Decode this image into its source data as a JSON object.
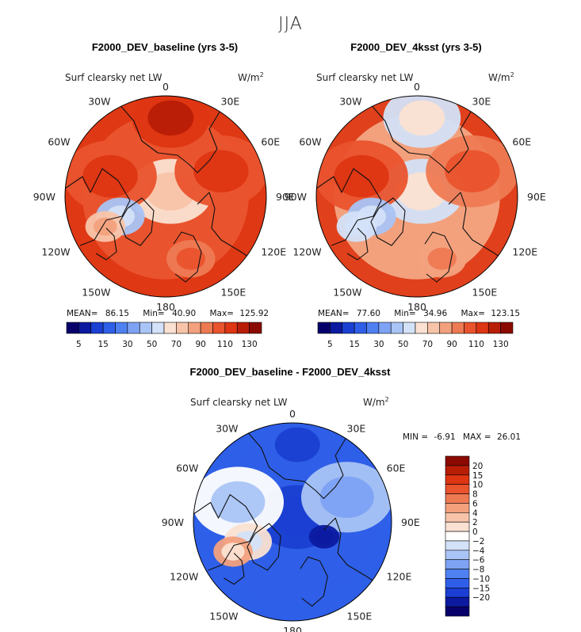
{
  "figure_title": "JJA",
  "chart_data": [
    {
      "type": "heatmap",
      "projection": "north-polar-stereographic",
      "title": "F2000_DEV_baseline (yrs 3-5)",
      "variable": "Surf clearsky net LW",
      "units": "W/m",
      "units_exponent": "2",
      "longitude_labels": [
        "180",
        "150E",
        "120E",
        "90E",
        "60E",
        "30E",
        "0",
        "30W",
        "60W",
        "90W",
        "120W",
        "150W"
      ],
      "stats": {
        "mean_label": "MEAN=",
        "mean": "86.15",
        "min_label": "Min=",
        "min": "40.90",
        "max_label": "Max=",
        "max": "125.92"
      },
      "colorbar": {
        "orientation": "horizontal",
        "levels": [
          5,
          10,
          15,
          20,
          30,
          40,
          50,
          60,
          70,
          80,
          90,
          100,
          110,
          120,
          130
        ],
        "tick_labels": [
          "5",
          "15",
          "30",
          "50",
          "70",
          "90",
          "110",
          "130"
        ],
        "colors": [
          "#08006a",
          "#0c1aa0",
          "#1a3fd2",
          "#2f5fe8",
          "#4f80f2",
          "#7ea2f4",
          "#a9c4f6",
          "#d3e2f8",
          "#fbe1d2",
          "#f8c4a9",
          "#f3a17d",
          "#ee7a53",
          "#e9532d",
          "#de3512",
          "#b81d06",
          "#8b0a00"
        ]
      },
      "field_summary": "Mostly warm shades 70-130 W/m2; reds over continents and Pacific, lighter peach over central Arctic ocean",
      "field_regions": [
        {
          "region": "central-arctic-ocean",
          "level_range": [
            60,
            80
          ]
        },
        {
          "region": "north-pacific",
          "level_range": [
            110,
            130
          ]
        },
        {
          "region": "siberia",
          "level_range": [
            100,
            130
          ]
        },
        {
          "region": "north-america",
          "level_range": [
            100,
            130
          ]
        },
        {
          "region": "greenland",
          "level_range": [
            40,
            60
          ]
        },
        {
          "region": "hudson-bay",
          "level_range": [
            70,
            90
          ]
        },
        {
          "region": "scandinavia",
          "level_range": [
            90,
            110
          ]
        }
      ]
    },
    {
      "type": "heatmap",
      "projection": "north-polar-stereographic",
      "title": "F2000_DEV_4ksst (yrs 3-5)",
      "variable": "Surf clearsky net LW",
      "units": "W/m",
      "units_exponent": "2",
      "longitude_labels": [
        "180",
        "150E",
        "120E",
        "90E",
        "60E",
        "30E",
        "0",
        "30W",
        "60W",
        "90W",
        "120W",
        "150W"
      ],
      "stats": {
        "mean_label": "MEAN=",
        "mean": "77.60",
        "min_label": "Min=",
        "min": "34.96",
        "max_label": "Max=",
        "max": "123.15"
      },
      "colorbar": {
        "orientation": "horizontal",
        "levels": [
          5,
          10,
          15,
          20,
          30,
          40,
          50,
          60,
          70,
          80,
          90,
          100,
          110,
          120,
          130
        ],
        "tick_labels": [
          "5",
          "15",
          "30",
          "50",
          "70",
          "90",
          "110",
          "130"
        ],
        "colors": [
          "#08006a",
          "#0c1aa0",
          "#1a3fd2",
          "#2f5fe8",
          "#4f80f2",
          "#7ea2f4",
          "#a9c4f6",
          "#d3e2f8",
          "#fbe1d2",
          "#f8c4a9",
          "#f3a17d",
          "#ee7a53",
          "#e9532d",
          "#de3512",
          "#b81d06",
          "#8b0a00"
        ]
      },
      "field_summary": "Pale blue 50-70 W/m2 over central Arctic ocean and Pacific margin, reds over continents",
      "field_regions": [
        {
          "region": "central-arctic-ocean",
          "level_range": [
            50,
            70
          ]
        },
        {
          "region": "north-pacific",
          "level_range": [
            50,
            70
          ]
        },
        {
          "region": "siberia",
          "level_range": [
            90,
            120
          ]
        },
        {
          "region": "north-america",
          "level_range": [
            100,
            130
          ]
        },
        {
          "region": "greenland",
          "level_range": [
            40,
            60
          ]
        },
        {
          "region": "hudson-bay",
          "level_range": [
            50,
            60
          ]
        },
        {
          "region": "scandinavia",
          "level_range": [
            80,
            100
          ]
        }
      ]
    },
    {
      "type": "heatmap",
      "projection": "north-polar-stereographic",
      "title": "F2000_DEV_baseline - F2000_DEV_4ksst",
      "variable": "Surf clearsky net LW",
      "units": "W/m",
      "units_exponent": "2",
      "longitude_labels": [
        "180",
        "150E",
        "120E",
        "90E",
        "60E",
        "30E",
        "0",
        "30W",
        "60W",
        "90W",
        "120W",
        "150W"
      ],
      "stats": {
        "min_label": "MIN =",
        "min": "-6.91",
        "max_label": "MAX =",
        "max": "26.01"
      },
      "colorbar": {
        "orientation": "vertical",
        "levels": [
          -20,
          -15,
          -10,
          -8,
          -6,
          -4,
          -2,
          0,
          2,
          4,
          6,
          8,
          10,
          15,
          20
        ],
        "tick_labels": [
          "20",
          "15",
          "10",
          "8",
          "6",
          "4",
          "2",
          "0",
          "−2",
          "−4",
          "−6",
          "−8",
          "−10",
          "−15",
          "−20"
        ],
        "colors": [
          "#8b0a00",
          "#b81d06",
          "#de3512",
          "#e9532d",
          "#ee7a53",
          "#f3a17d",
          "#f8c4a9",
          "#fbe1d2",
          "#ffffff",
          "#d3e2f8",
          "#a9c4f6",
          "#7ea2f4",
          "#4f80f2",
          "#2f5fe8",
          "#1a3fd2",
          "#0c1aa0",
          "#08006a"
        ]
      },
      "field_summary": "Mostly positive differences 4-20 W/m2, strongest (15-20) over central Arctic and Pacific; small negative patches near Hudson Bay and Greenland",
      "field_regions": [
        {
          "region": "central-arctic-ocean",
          "level_range": [
            15,
            20
          ]
        },
        {
          "region": "north-pacific",
          "level_range": [
            10,
            20
          ]
        },
        {
          "region": "siberia",
          "level_range": [
            4,
            10
          ]
        },
        {
          "region": "north-america",
          "level_range": [
            0,
            8
          ]
        },
        {
          "region": "greenland",
          "level_range": [
            -2,
            6
          ]
        },
        {
          "region": "hudson-bay",
          "level_range": [
            -6,
            2
          ]
        },
        {
          "region": "kara-sea",
          "level_range": [
            20,
            26
          ]
        }
      ]
    }
  ]
}
